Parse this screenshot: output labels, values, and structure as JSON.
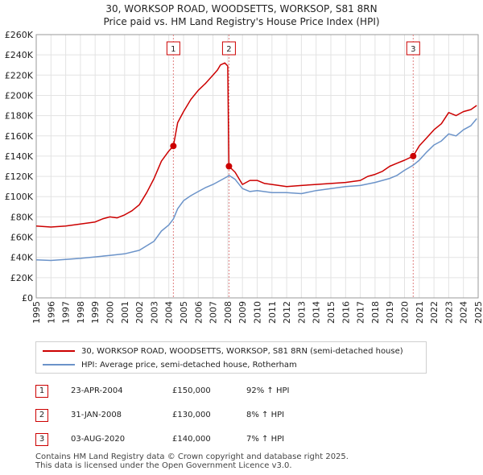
{
  "title": {
    "line1": "30, WORKSOP ROAD, WOODSETTS, WORKSOP, S81 8RN",
    "line2": "Price paid vs. HM Land Registry's House Price Index (HPI)"
  },
  "colors": {
    "property_line": "#cc0000",
    "hpi_line": "#6b93c9",
    "marker_box_border": "#cc0000",
    "vline": "#e08080",
    "grid": "#e3e3e3"
  },
  "legend": {
    "property_label": "30, WORKSOP ROAD, WOODSETTS, WORKSOP, S81 8RN (semi-detached house)",
    "hpi_label": "HPI: Average price, semi-detached house, Rotherham"
  },
  "transactions": [
    {
      "num": "1",
      "date": "23-APR-2004",
      "price": "£150,000",
      "hpi": "92% ↑ HPI"
    },
    {
      "num": "2",
      "date": "31-JAN-2008",
      "price": "£130,000",
      "hpi": "8% ↑ HPI"
    },
    {
      "num": "3",
      "date": "03-AUG-2020",
      "price": "£140,000",
      "hpi": "7% ↑ HPI"
    }
  ],
  "footer": {
    "line1": "Contains HM Land Registry data © Crown copyright and database right 2025.",
    "line2": "This data is licensed under the Open Government Licence v3.0."
  },
  "chart_data": {
    "type": "line",
    "title": "Price paid vs. HM Land Registry's House Price Index (HPI)",
    "xlabel": "",
    "ylabel": "",
    "xlim": [
      1995,
      2025
    ],
    "ylim": [
      0,
      260000
    ],
    "grid": true,
    "y_ticks": [
      0,
      20000,
      40000,
      60000,
      80000,
      100000,
      120000,
      140000,
      160000,
      180000,
      200000,
      220000,
      240000,
      260000
    ],
    "y_tick_labels": [
      "£0",
      "£20K",
      "£40K",
      "£60K",
      "£80K",
      "£100K",
      "£120K",
      "£140K",
      "£160K",
      "£180K",
      "£200K",
      "£220K",
      "£240K",
      "£260K"
    ],
    "x_ticks": [
      1995,
      1996,
      1997,
      1998,
      1999,
      2000,
      2001,
      2002,
      2003,
      2004,
      2005,
      2006,
      2007,
      2008,
      2009,
      2010,
      2011,
      2012,
      2013,
      2014,
      2015,
      2016,
      2017,
      2018,
      2019,
      2020,
      2021,
      2022,
      2023,
      2024,
      2025
    ],
    "x_tick_labels": [
      "1995",
      "1996",
      "1997",
      "1998",
      "1999",
      "2000",
      "2001",
      "2002",
      "2003",
      "2004",
      "2005",
      "2006",
      "2007",
      "2008",
      "2009",
      "2010",
      "2011",
      "2012",
      "2013",
      "2014",
      "2015",
      "2016",
      "2017",
      "2018",
      "2019",
      "2020",
      "2021",
      "2022",
      "2023",
      "2024",
      "2025"
    ],
    "series": [
      {
        "name": "30, WORKSOP ROAD, WOODSETTS, WORKSOP, S81 8RN (semi-detached house)",
        "x": [
          1995.0,
          1996.0,
          1997.0,
          1998.0,
          1999.0,
          1999.5,
          2000.0,
          2000.5,
          2001.0,
          2001.5,
          2002.0,
          2002.5,
          2003.0,
          2003.5,
          2004.0,
          2004.31,
          2004.6,
          2005.0,
          2005.5,
          2006.0,
          2006.5,
          2007.0,
          2007.3,
          2007.5,
          2007.8,
          2008.0,
          2008.083,
          2008.5,
          2009.0,
          2009.5,
          2010.0,
          2010.5,
          2011.0,
          2012.0,
          2013.0,
          2014.0,
          2015.0,
          2016.0,
          2017.0,
          2017.5,
          2018.0,
          2018.5,
          2019.0,
          2019.5,
          2020.0,
          2020.59,
          2021.0,
          2021.5,
          2022.0,
          2022.5,
          2023.0,
          2023.5,
          2024.0,
          2024.5,
          2024.9
        ],
        "values": [
          71000,
          70000,
          71000,
          73000,
          75000,
          78000,
          80000,
          79000,
          82000,
          86000,
          92000,
          104000,
          118000,
          135000,
          145000,
          150000,
          173000,
          184000,
          196000,
          205000,
          212000,
          220000,
          225000,
          230000,
          232000,
          229000,
          130000,
          124000,
          112000,
          116000,
          116000,
          113000,
          112000,
          110000,
          111000,
          112000,
          113000,
          114000,
          116000,
          120000,
          122000,
          125000,
          130000,
          133000,
          136000,
          140000,
          150000,
          158000,
          166000,
          172000,
          183000,
          180000,
          184000,
          186000,
          190000
        ]
      },
      {
        "name": "HPI: Average price, semi-detached house, Rotherham",
        "x": [
          1995.0,
          1996.0,
          1997.0,
          1998.0,
          1999.0,
          2000.0,
          2001.0,
          2002.0,
          2003.0,
          2003.5,
          2004.0,
          2004.31,
          2004.6,
          2005.0,
          2005.5,
          2006.0,
          2006.5,
          2007.0,
          2007.5,
          2008.0,
          2008.083,
          2008.5,
          2009.0,
          2009.5,
          2010.0,
          2011.0,
          2012.0,
          2013.0,
          2014.0,
          2015.0,
          2016.0,
          2017.0,
          2018.0,
          2019.0,
          2019.5,
          2020.0,
          2020.59,
          2021.0,
          2021.5,
          2022.0,
          2022.5,
          2023.0,
          2023.5,
          2024.0,
          2024.5,
          2024.9
        ],
        "values": [
          37500,
          37000,
          38000,
          39000,
          40500,
          42000,
          43500,
          47000,
          56000,
          66000,
          72000,
          78000,
          88000,
          96000,
          101000,
          105000,
          109000,
          112000,
          116000,
          120000,
          121000,
          117000,
          108000,
          105000,
          106000,
          104000,
          104000,
          103000,
          106000,
          108000,
          110000,
          111000,
          114000,
          118000,
          121000,
          126000,
          131000,
          136000,
          144000,
          151000,
          155000,
          162000,
          160000,
          166000,
          170000,
          177000
        ]
      }
    ],
    "sale_markers": [
      {
        "label": "1",
        "x": 2004.31,
        "value": 150000
      },
      {
        "label": "2",
        "x": 2008.083,
        "value": 130000
      },
      {
        "label": "3",
        "x": 2020.59,
        "value": 140000
      }
    ]
  }
}
